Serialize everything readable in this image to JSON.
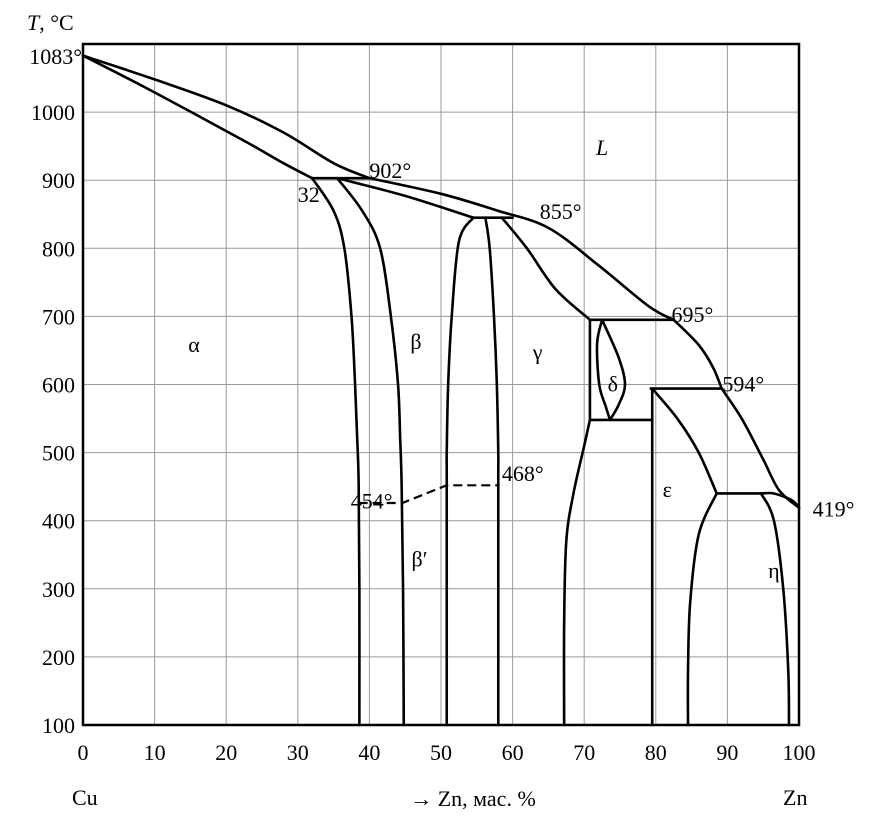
{
  "chart_data": {
    "type": "phase-diagram",
    "y_axis": {
      "label": "T, °C",
      "top_label": "1083°",
      "ticks": [
        100,
        200,
        300,
        400,
        500,
        600,
        700,
        800,
        900,
        1000
      ],
      "range": [
        100,
        1100
      ]
    },
    "x_axis": {
      "ticks": [
        0,
        10,
        20,
        30,
        40,
        50,
        60,
        70,
        80,
        90,
        100
      ],
      "range": [
        0,
        100
      ],
      "left_component": "Cu",
      "right_component": "Zn",
      "label": "→ Zn, мас. %"
    },
    "grid": true,
    "annotations": [
      {
        "text": "902°",
        "x": 40.0,
        "y": 903
      },
      {
        "text": "32",
        "x": 30.0,
        "y": 868
      },
      {
        "text": "855°",
        "x": 63.8,
        "y": 843
      },
      {
        "text": "695°",
        "x": 82.2,
        "y": 692
      },
      {
        "text": "594°",
        "x": 89.3,
        "y": 590
      },
      {
        "text": "468°",
        "x": 58.5,
        "y": 458
      },
      {
        "text": "454°",
        "x": 37.4,
        "y": 418
      },
      {
        "text": "419°",
        "x": 101.9,
        "y": 406
      }
    ],
    "phases": [
      {
        "label": "L",
        "x": 72.5,
        "y": 937,
        "italic": true
      },
      {
        "label": "α",
        "x": 15.5,
        "y": 648
      },
      {
        "label": "β",
        "x": 46.5,
        "y": 652
      },
      {
        "label": "γ",
        "x": 63.5,
        "y": 637
      },
      {
        "label": "δ",
        "x": 74.0,
        "y": 590
      },
      {
        "label": "ε",
        "x": 81.6,
        "y": 435
      },
      {
        "label": "β′",
        "x": 47.0,
        "y": 333
      },
      {
        "label": "η",
        "x": 96.5,
        "y": 316
      }
    ],
    "boundaries": [
      [
        [
          0,
          1083
        ],
        [
          8,
          1040
        ],
        [
          16,
          995
        ],
        [
          23,
          955
        ],
        [
          28,
          925
        ],
        [
          32,
          903
        ]
      ],
      [
        [
          0,
          1083
        ],
        [
          10,
          1048
        ],
        [
          20,
          1010
        ],
        [
          28,
          970
        ],
        [
          35,
          925
        ],
        [
          40,
          903
        ]
      ],
      [
        [
          40,
          903
        ],
        [
          50,
          880
        ],
        [
          58,
          855
        ],
        [
          65,
          830
        ],
        [
          72,
          775
        ],
        [
          79,
          715
        ],
        [
          82.5,
          695
        ]
      ],
      [
        [
          32,
          903
        ],
        [
          35,
          855
        ],
        [
          36.5,
          800
        ],
        [
          37.5,
          700
        ],
        [
          38,
          600
        ],
        [
          38.3,
          520
        ],
        [
          38.5,
          454
        ],
        [
          38.6,
          300
        ],
        [
          38.6,
          100
        ]
      ],
      [
        [
          35.5,
          903
        ],
        [
          39,
          855
        ],
        [
          41.5,
          800
        ],
        [
          43,
          700
        ],
        [
          44,
          600
        ],
        [
          44.3,
          520
        ],
        [
          44.5,
          454
        ],
        [
          44.7,
          300
        ],
        [
          44.8,
          100
        ]
      ],
      [
        [
          32,
          903
        ],
        [
          40,
          903
        ]
      ],
      [
        [
          35.5,
          903
        ],
        [
          45,
          877
        ],
        [
          54.5,
          845
        ]
      ],
      [
        [
          54.5,
          845
        ],
        [
          52.5,
          810
        ],
        [
          51.5,
          700
        ],
        [
          51,
          600
        ],
        [
          50.8,
          500
        ],
        [
          50.8,
          468
        ],
        [
          50.8,
          300
        ],
        [
          50.8,
          100
        ]
      ],
      [
        [
          56.2,
          845
        ],
        [
          56.8,
          800
        ],
        [
          57.4,
          700
        ],
        [
          57.8,
          600
        ],
        [
          58,
          500
        ],
        [
          58,
          468
        ],
        [
          58,
          300
        ],
        [
          58,
          100
        ]
      ],
      [
        [
          54.5,
          845
        ],
        [
          60,
          845
        ]
      ],
      [
        [
          58.5,
          845
        ],
        [
          62,
          800
        ],
        [
          66,
          740
        ],
        [
          70.8,
          695
        ]
      ],
      [
        [
          70.8,
          695
        ],
        [
          82.5,
          695
        ]
      ],
      [
        [
          70.8,
          695
        ],
        [
          70.8,
          548
        ]
      ],
      [
        [
          70.8,
          548
        ],
        [
          70,
          510
        ],
        [
          68.5,
          440
        ],
        [
          67.5,
          370
        ],
        [
          67.2,
          250
        ],
        [
          67.2,
          100
        ]
      ],
      [
        [
          70.8,
          548
        ],
        [
          79.5,
          548
        ]
      ],
      [
        [
          72.5,
          695
        ],
        [
          71.8,
          660
        ],
        [
          72.1,
          600
        ],
        [
          73,
          568
        ],
        [
          73.6,
          548
        ]
      ],
      [
        [
          72.5,
          695
        ],
        [
          74.8,
          640
        ],
        [
          75.7,
          600
        ],
        [
          74.8,
          570
        ],
        [
          73.6,
          548
        ]
      ],
      [
        [
          79.5,
          594
        ],
        [
          79.5,
          100
        ]
      ],
      [
        [
          79.3,
          594
        ],
        [
          89,
          594
        ]
      ],
      [
        [
          79.5,
          594
        ],
        [
          83,
          550
        ],
        [
          86,
          500
        ],
        [
          88.5,
          440
        ]
      ],
      [
        [
          88.5,
          440
        ],
        [
          94.7,
          440
        ]
      ],
      [
        [
          88.5,
          440
        ],
        [
          86,
          380
        ],
        [
          84.8,
          280
        ],
        [
          84.5,
          180
        ],
        [
          84.5,
          100
        ]
      ],
      [
        [
          82.5,
          695
        ],
        [
          86,
          658
        ],
        [
          88,
          625
        ],
        [
          89.2,
          594
        ]
      ],
      [
        [
          89.2,
          594
        ],
        [
          92,
          550
        ],
        [
          95,
          490
        ],
        [
          97.2,
          445
        ],
        [
          100,
          419
        ]
      ],
      [
        [
          94.7,
          440
        ],
        [
          96.5,
          400
        ],
        [
          97.8,
          300
        ],
        [
          98.5,
          180
        ],
        [
          98.6,
          100
        ]
      ],
      [
        [
          94.7,
          440
        ],
        [
          96.5,
          440
        ],
        [
          99,
          430
        ],
        [
          100,
          419
        ]
      ]
    ],
    "dashed_boundaries": [
      [
        [
          38.5,
          426
        ],
        [
          44.6,
          426
        ],
        [
          50.8,
          452
        ],
        [
          58,
          452
        ]
      ]
    ]
  }
}
